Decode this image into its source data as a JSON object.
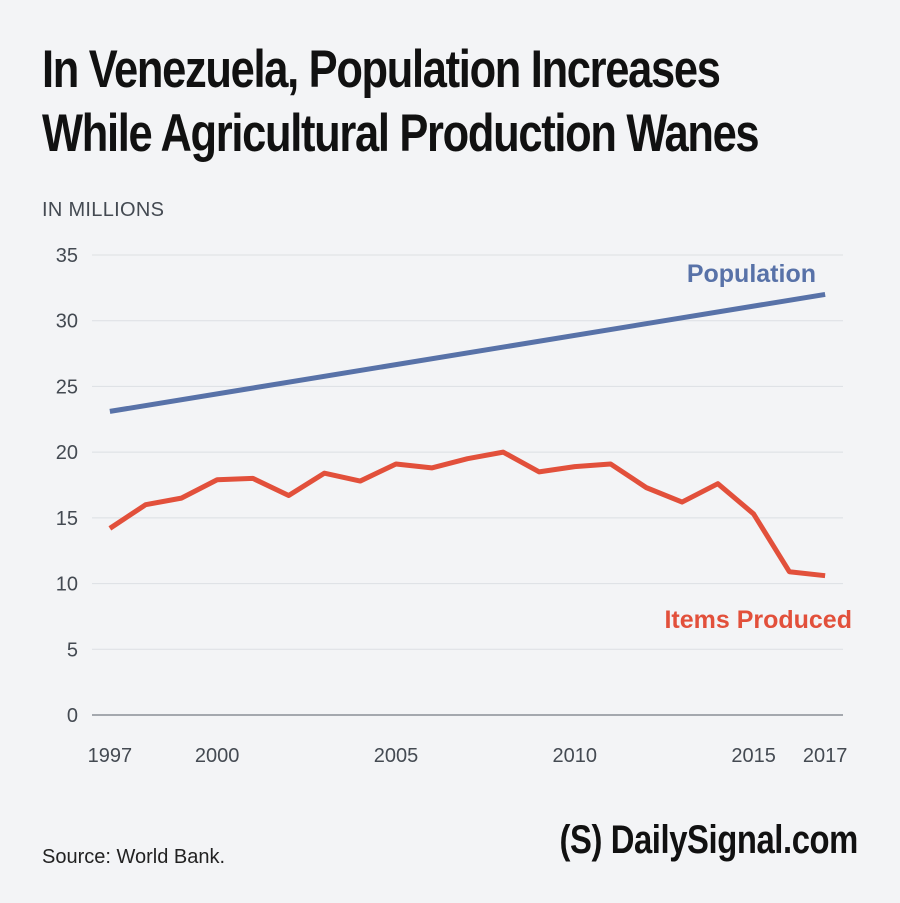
{
  "chart_data": {
    "type": "line",
    "title_line1": "In Venezuela, Population Increases",
    "title_line2": "While Agricultural Production Wanes",
    "units_label": "IN MILLIONS",
    "ylim": [
      0,
      35
    ],
    "y_ticks": [
      0,
      5,
      10,
      15,
      20,
      25,
      30,
      35
    ],
    "x_ticks": [
      1997,
      2000,
      2005,
      2010,
      2015,
      2017
    ],
    "grid": true,
    "series": [
      {
        "name": "Population",
        "color": "#5872a8",
        "x": [
          1997,
          2017
        ],
        "values": [
          23.1,
          32.0
        ]
      },
      {
        "name": "Items Produced",
        "color": "#e2503b",
        "x": [
          1997,
          1998,
          1999,
          2000,
          2001,
          2002,
          2003,
          2004,
          2005,
          2006,
          2007,
          2008,
          2009,
          2010,
          2011,
          2012,
          2013,
          2014,
          2015,
          2016,
          2017
        ],
        "values": [
          14.2,
          16.0,
          16.5,
          17.9,
          18.0,
          16.7,
          18.4,
          17.8,
          19.1,
          18.8,
          19.5,
          20.0,
          18.5,
          18.9,
          19.1,
          17.3,
          16.2,
          17.6,
          15.3,
          10.9,
          10.6
        ]
      }
    ]
  },
  "footer": {
    "source": "Source: World Bank.",
    "logo": "(S) DailySignal.com"
  }
}
